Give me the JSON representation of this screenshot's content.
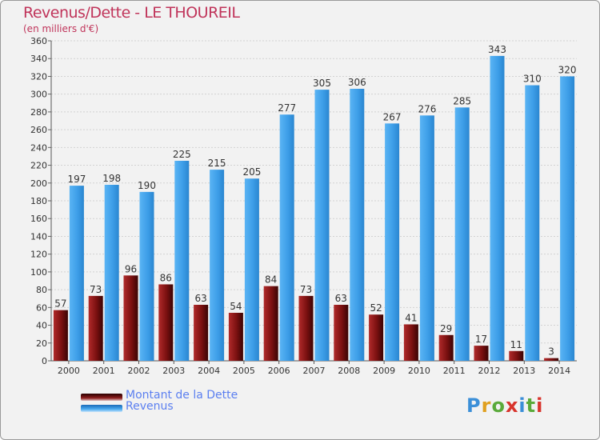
{
  "chart_data": {
    "type": "bar",
    "title": "Revenus/Dette - LE THOUREIL",
    "subtitle": "(en milliers d'€)",
    "categories": [
      "2000",
      "2001",
      "2002",
      "2003",
      "2004",
      "2005",
      "2006",
      "2007",
      "2008",
      "2009",
      "2010",
      "2011",
      "2012",
      "2013",
      "2014"
    ],
    "series": [
      {
        "name": "Montant de la Dette",
        "color": "#7a1010",
        "values": [
          57,
          73,
          96,
          86,
          63,
          54,
          84,
          73,
          63,
          52,
          41,
          29,
          17,
          11,
          3
        ]
      },
      {
        "name": "Revenus",
        "color": "#3d9ee8",
        "values": [
          197,
          198,
          190,
          225,
          215,
          205,
          277,
          305,
          306,
          267,
          276,
          285,
          343,
          310,
          320
        ]
      }
    ],
    "ylim": [
      0,
      360
    ],
    "yticks": [
      0,
      20,
      40,
      60,
      80,
      100,
      120,
      140,
      160,
      180,
      200,
      220,
      240,
      260,
      280,
      300,
      320,
      340,
      360
    ],
    "grid": true,
    "legend_position": "bottom-left"
  },
  "logo_text": "Proxiti"
}
